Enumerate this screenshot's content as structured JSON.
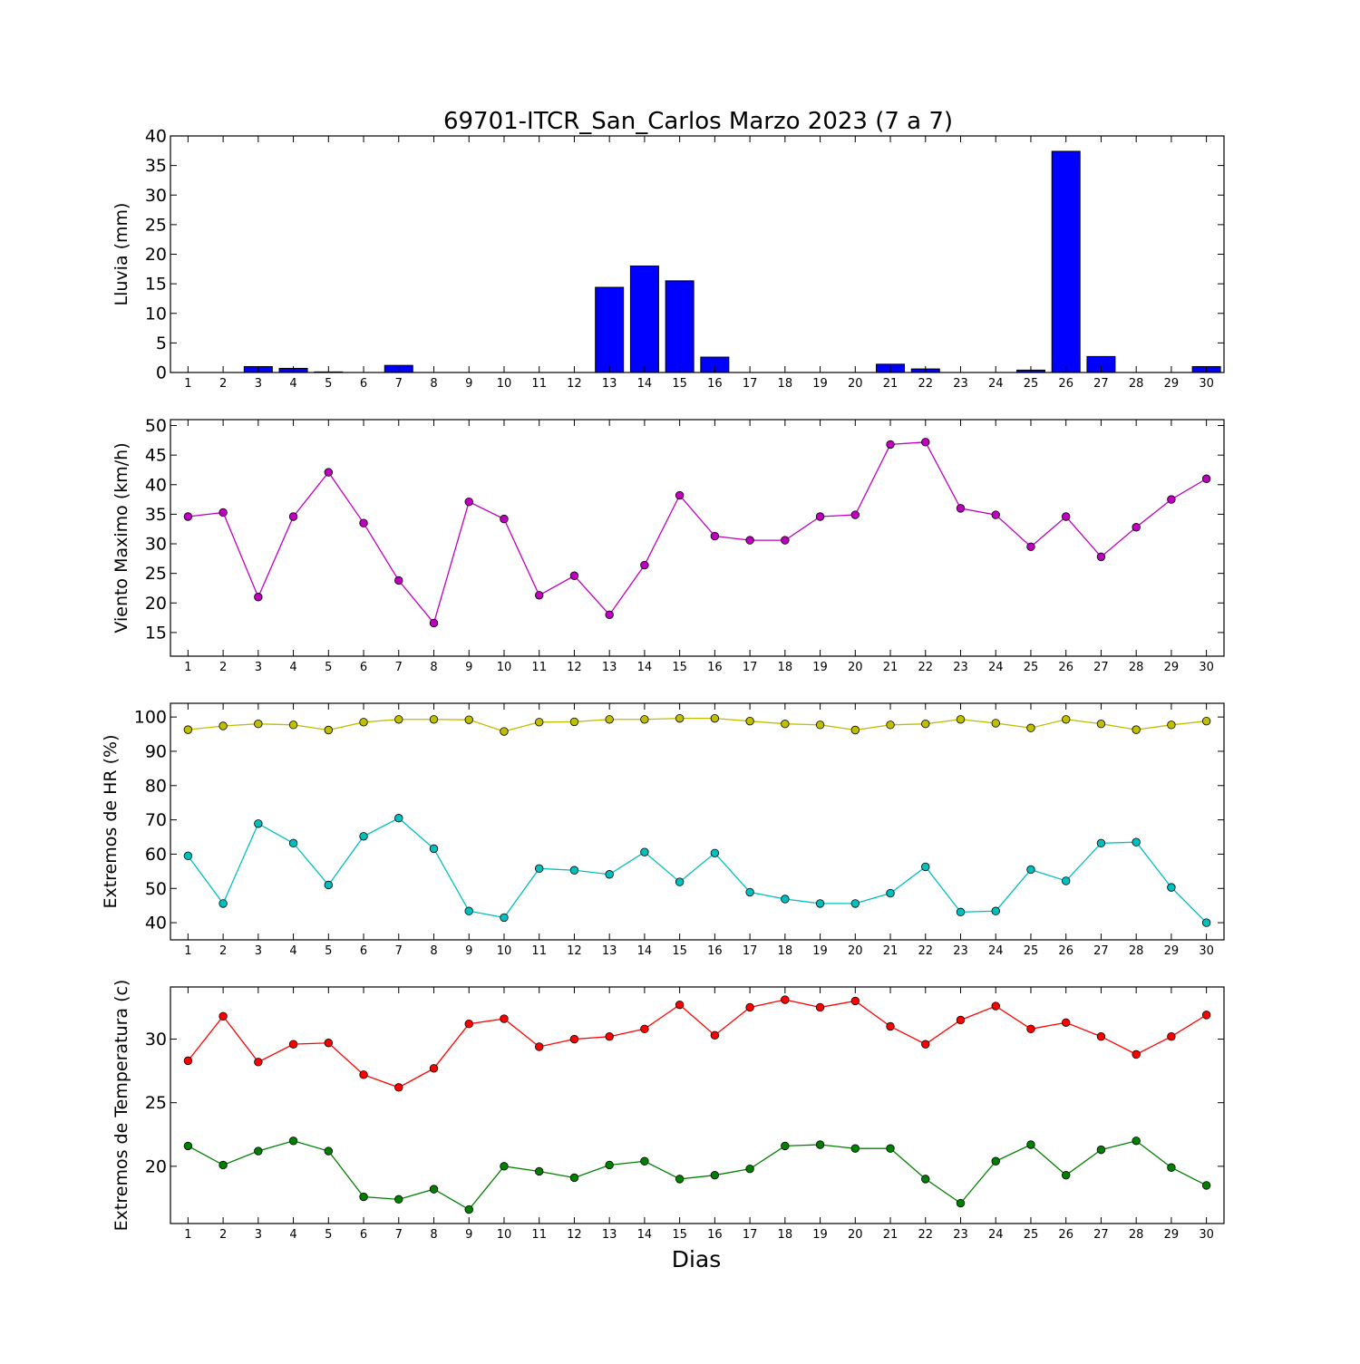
{
  "title": "69701-ITCR_San_Carlos Marzo 2023  (7 a 7)",
  "xlabel": "Dias",
  "colors": {
    "rain": "#0000ff",
    "wind": "#bf00bf",
    "hr_max": "#bfbf00",
    "hr_min": "#00bfbf",
    "temp_max": "#ff0000",
    "temp_min": "#008000"
  },
  "chart_data": [
    {
      "type": "bar",
      "ylabel": "Lluvia (mm)",
      "ylim": [
        0,
        40
      ],
      "yticks": [
        0,
        5,
        10,
        15,
        20,
        25,
        30,
        35,
        40
      ],
      "categories": [
        1,
        2,
        3,
        4,
        5,
        6,
        7,
        8,
        9,
        10,
        11,
        12,
        13,
        14,
        15,
        16,
        17,
        18,
        19,
        20,
        21,
        22,
        23,
        24,
        25,
        26,
        27,
        28,
        29,
        30
      ],
      "series": [
        {
          "values": [
            0,
            0,
            1.0,
            0.7,
            0.1,
            0,
            1.2,
            0,
            0,
            0,
            0,
            0,
            14.4,
            18.0,
            15.5,
            2.6,
            0,
            0,
            0,
            0,
            1.4,
            0.6,
            0,
            0,
            0.4,
            37.4,
            2.7,
            0,
            0,
            1.0
          ],
          "color_key": "rain"
        }
      ],
      "grid": false
    },
    {
      "type": "line",
      "ylabel": "Viento Maximo (km/h)",
      "ylim": [
        11,
        51
      ],
      "yticks": [
        15,
        20,
        25,
        30,
        35,
        40,
        45,
        50
      ],
      "x": [
        1,
        2,
        3,
        4,
        5,
        6,
        7,
        8,
        9,
        10,
        11,
        12,
        13,
        14,
        15,
        16,
        17,
        18,
        19,
        20,
        21,
        22,
        23,
        24,
        25,
        26,
        27,
        28,
        29,
        30
      ],
      "series": [
        {
          "values": [
            34.6,
            35.3,
            21.0,
            34.6,
            42.1,
            33.5,
            23.8,
            16.6,
            37.1,
            34.2,
            21.3,
            24.6,
            18.0,
            26.4,
            38.2,
            31.3,
            30.6,
            30.6,
            34.6,
            34.9,
            46.8,
            47.2,
            36.0,
            34.9,
            29.5,
            34.6,
            27.8,
            32.8,
            37.5,
            41.0
          ],
          "color_key": "wind"
        }
      ],
      "grid": false
    },
    {
      "type": "line",
      "ylabel": "Extremos de HR (%)",
      "ylim": [
        35,
        104
      ],
      "yticks": [
        40,
        50,
        60,
        70,
        80,
        90,
        100
      ],
      "x": [
        1,
        2,
        3,
        4,
        5,
        6,
        7,
        8,
        9,
        10,
        11,
        12,
        13,
        14,
        15,
        16,
        17,
        18,
        19,
        20,
        21,
        22,
        23,
        24,
        25,
        26,
        27,
        28,
        29,
        30
      ],
      "series": [
        {
          "values": [
            96.3,
            97.4,
            98.0,
            97.7,
            96.2,
            98.5,
            99.3,
            99.3,
            99.2,
            95.8,
            98.5,
            98.6,
            99.3,
            99.3,
            99.6,
            99.6,
            98.8,
            98.0,
            97.7,
            96.2,
            97.7,
            98.0,
            99.3,
            98.2,
            96.8,
            99.3,
            98.0,
            96.3,
            97.7,
            98.8
          ],
          "color_key": "hr_max"
        },
        {
          "values": [
            59.5,
            45.6,
            68.9,
            63.2,
            51.0,
            65.2,
            70.5,
            61.6,
            43.4,
            41.5,
            55.8,
            55.3,
            54.1,
            60.6,
            51.9,
            60.3,
            48.9,
            46.9,
            45.6,
            45.6,
            48.6,
            56.3,
            43.1,
            43.4,
            55.5,
            52.2,
            63.2,
            63.5,
            50.3,
            40.0
          ],
          "color_key": "hr_min"
        }
      ],
      "grid": false
    },
    {
      "type": "line",
      "ylabel": "Extremos de Temperatura (c)",
      "ylim": [
        15.5,
        34.1
      ],
      "yticks": [
        20,
        25,
        30
      ],
      "x": [
        1,
        2,
        3,
        4,
        5,
        6,
        7,
        8,
        9,
        10,
        11,
        12,
        13,
        14,
        15,
        16,
        17,
        18,
        19,
        20,
        21,
        22,
        23,
        24,
        25,
        26,
        27,
        28,
        29,
        30
      ],
      "series": [
        {
          "values": [
            28.3,
            31.8,
            28.2,
            29.6,
            29.7,
            27.2,
            26.2,
            27.7,
            31.2,
            31.6,
            29.4,
            30.0,
            30.2,
            30.8,
            32.7,
            30.3,
            32.5,
            33.1,
            32.5,
            33.0,
            31.0,
            29.6,
            31.5,
            32.6,
            30.8,
            31.3,
            30.2,
            28.8,
            30.2,
            31.9
          ],
          "color_key": "temp_max"
        },
        {
          "values": [
            21.6,
            20.1,
            21.2,
            22.0,
            21.2,
            17.6,
            17.4,
            18.2,
            16.6,
            20.0,
            19.6,
            19.1,
            20.1,
            20.4,
            19.0,
            19.3,
            19.8,
            21.6,
            21.7,
            21.4,
            21.4,
            19.0,
            17.1,
            20.4,
            21.7,
            19.3,
            21.3,
            22.0,
            19.9,
            18.5
          ],
          "color_key": "temp_min"
        }
      ],
      "grid": false
    }
  ]
}
